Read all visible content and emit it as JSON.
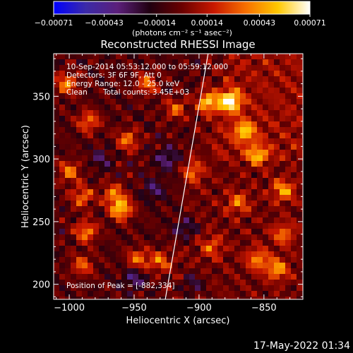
{
  "chart_data": {
    "type": "heatmap",
    "title": "Reconstructed RHESSI Image",
    "xlabel": "Heliocentric X (arcsec)",
    "ylabel": "Heliocentric Y (arcsec)",
    "xlim": [
      -1012,
      -820
    ],
    "ylim": [
      188,
      384
    ],
    "xticks": [
      -1000,
      -950,
      -900,
      -850
    ],
    "xtick_labels": [
      "−1000",
      "−950",
      "−900",
      "−850"
    ],
    "yticks": [
      200,
      250,
      300,
      350
    ],
    "ytick_labels": [
      "200",
      "250",
      "300",
      "350"
    ],
    "colorbar": {
      "min": -0.00071,
      "max": 0.00071,
      "ticks": [
        -0.00071,
        -0.00043,
        -0.00014,
        0.00014,
        0.00043,
        0.00071
      ],
      "tick_labels": [
        "−0.00071",
        "−0.00043",
        "−0.00014",
        "0.00014",
        "0.00043",
        "0.00071"
      ],
      "unit_label": "(photons cm⁻² s⁻¹ asec⁻²)",
      "colormap": [
        "#0000ff",
        "#3b2aa8",
        "#5b1f7a",
        "#200010",
        "#6a0000",
        "#c81800",
        "#f87000",
        "#ffc800",
        "#ffffff"
      ]
    },
    "annotations": {
      "time_range": "10-Sep-2014 05:53:12.000 to 05:59:12.000",
      "detectors": "Detectors: 3F 6F 9F, Att 0",
      "energy": "Energy Range: 12.0 - 25.0 keV",
      "method": "Clean",
      "counts": "Total counts: 3.45E+03",
      "peak": "Position of Peak = [-882,334]"
    },
    "peak": [
      -882,
      334
    ],
    "limb_line": {
      "x_bottom": -926,
      "x_top": -893
    },
    "hotspots": [
      {
        "x": -876,
        "y": 346,
        "value": 0.00071
      },
      {
        "x": -893,
        "y": 345,
        "value": 0.00055
      },
      {
        "x": -865,
        "y": 322,
        "value": 0.0005
      },
      {
        "x": -855,
        "y": 303,
        "value": 0.00045
      },
      {
        "x": -966,
        "y": 272,
        "value": 0.0004
      },
      {
        "x": -990,
        "y": 270,
        "value": 0.0004
      },
      {
        "x": -960,
        "y": 260,
        "value": 0.0006
      },
      {
        "x": -987,
        "y": 242,
        "value": 0.00045
      },
      {
        "x": -835,
        "y": 275,
        "value": 0.00045
      },
      {
        "x": -855,
        "y": 220,
        "value": 0.0004
      },
      {
        "x": -840,
        "y": 212,
        "value": 0.00045
      },
      {
        "x": -835,
        "y": 240,
        "value": 0.00035
      },
      {
        "x": -930,
        "y": 218,
        "value": 0.0004
      },
      {
        "x": -947,
        "y": 220,
        "value": 0.0004
      },
      {
        "x": -990,
        "y": 215,
        "value": 0.00035
      },
      {
        "x": -985,
        "y": 330,
        "value": 0.0004
      },
      {
        "x": -955,
        "y": 315,
        "value": 0.0004
      },
      {
        "x": -918,
        "y": 340,
        "value": 0.00035
      },
      {
        "x": -905,
        "y": 290,
        "value": 0.00035
      },
      {
        "x": -870,
        "y": 265,
        "value": 0.00035
      },
      {
        "x": -890,
        "y": 230,
        "value": 0.0003
      },
      {
        "x": -1002,
        "y": 360,
        "value": 0.00045
      },
      {
        "x": -1000,
        "y": 290,
        "value": 0.0004
      },
      {
        "x": -940,
        "y": 360,
        "value": 0.0004
      }
    ],
    "coldspots": [
      {
        "x": -910,
        "y": 245,
        "value": -0.0003
      },
      {
        "x": -935,
        "y": 275,
        "value": -0.00025
      },
      {
        "x": -950,
        "y": 205,
        "value": -0.0003
      },
      {
        "x": -925,
        "y": 300,
        "value": -0.0003
      },
      {
        "x": -975,
        "y": 300,
        "value": -0.0002
      },
      {
        "x": -905,
        "y": 200,
        "value": -0.00025
      }
    ]
  },
  "footer": {
    "timestamp": "17-May-2022 01:34"
  }
}
